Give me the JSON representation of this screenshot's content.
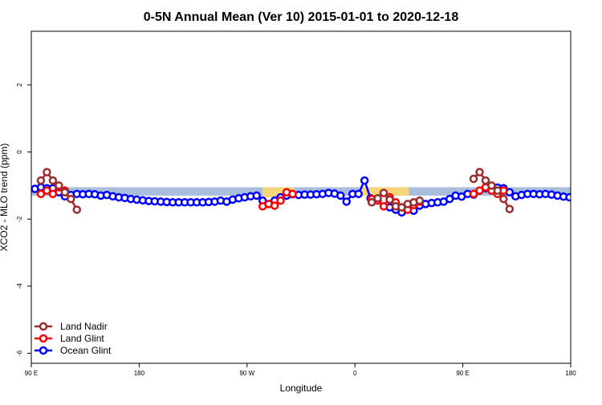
{
  "chart_data": {
    "type": "line",
    "title": "0-5N Annual Mean (Ver 10)   2015-01-01 to 2020-12-18",
    "xlabel": "Longitude",
    "ylabel": "XCO2 - MLO trend (ppm)",
    "xlim": [
      0,
      450
    ],
    "ylim": [
      -6.3,
      3.6
    ],
    "x_ticks": [
      {
        "value": 0,
        "label": "90 E"
      },
      {
        "value": 90,
        "label": "180"
      },
      {
        "value": 180,
        "label": "90 W"
      },
      {
        "value": 270,
        "label": "0"
      },
      {
        "value": 360,
        "label": "90 E"
      },
      {
        "value": 450,
        "label": "180"
      }
    ],
    "y_ticks": [
      {
        "value": -6,
        "label": "-6"
      },
      {
        "value": -4,
        "label": "-4"
      },
      {
        "value": -2,
        "label": "-2"
      },
      {
        "value": 0,
        "label": "0"
      },
      {
        "value": 2,
        "label": "2"
      }
    ],
    "legend": {
      "position": "bottom-left",
      "items": [
        {
          "name": "Land Nadir",
          "color": "#9b2d30"
        },
        {
          "name": "Land Glint",
          "color": "#ff0000"
        },
        {
          "name": "Ocean Glint",
          "color": "#0000ff"
        }
      ]
    },
    "bands": [
      {
        "kind": "ocean",
        "color": "#a9bedc",
        "x0": 0,
        "x1": 450,
        "y0": -1.3,
        "y1": -1.05
      },
      {
        "kind": "land",
        "color": "#f7d57a",
        "x0": 193,
        "x1": 219,
        "y0": -1.35,
        "y1": -1.05
      },
      {
        "kind": "land",
        "color": "#f7d57a",
        "x0": 275,
        "x1": 315,
        "y0": -1.3,
        "y1": -1.05
      }
    ],
    "series": [
      {
        "name": "Ocean Glint",
        "color": "#0000ff",
        "segments": [
          [
            [
              3,
              -1.1
            ],
            [
              8,
              -1.05
            ],
            [
              13,
              -1.08
            ],
            [
              18,
              -1.08
            ],
            [
              23,
              -1.2
            ],
            [
              28,
              -1.32
            ],
            [
              33,
              -1.28
            ],
            [
              38,
              -1.25
            ],
            [
              43,
              -1.26
            ],
            [
              48,
              -1.25
            ],
            [
              53,
              -1.26
            ],
            [
              58,
              -1.3
            ],
            [
              63,
              -1.28
            ],
            [
              68,
              -1.32
            ],
            [
              73,
              -1.35
            ],
            [
              78,
              -1.37
            ],
            [
              83,
              -1.4
            ],
            [
              88,
              -1.42
            ],
            [
              93,
              -1.44
            ],
            [
              98,
              -1.46
            ],
            [
              103,
              -1.47
            ],
            [
              108,
              -1.48
            ],
            [
              113,
              -1.49
            ],
            [
              118,
              -1.5
            ],
            [
              123,
              -1.5
            ],
            [
              128,
              -1.5
            ],
            [
              133,
              -1.5
            ],
            [
              138,
              -1.5
            ],
            [
              143,
              -1.5
            ],
            [
              148,
              -1.49
            ],
            [
              153,
              -1.48
            ],
            [
              158,
              -1.45
            ],
            [
              163,
              -1.48
            ],
            [
              168,
              -1.42
            ],
            [
              173,
              -1.38
            ],
            [
              178,
              -1.35
            ],
            [
              183,
              -1.32
            ],
            [
              188,
              -1.3
            ],
            [
              193,
              -1.45
            ],
            [
              198,
              -1.55
            ],
            [
              203,
              -1.45
            ],
            [
              208,
              -1.35
            ],
            [
              213,
              -1.3
            ],
            [
              218,
              -1.26
            ],
            [
              223,
              -1.28
            ],
            [
              228,
              -1.27
            ],
            [
              233,
              -1.27
            ],
            [
              238,
              -1.26
            ],
            [
              243,
              -1.25
            ],
            [
              248,
              -1.22
            ],
            [
              253,
              -1.24
            ],
            [
              258,
              -1.3
            ],
            [
              263,
              -1.48
            ],
            [
              268,
              -1.25
            ],
            [
              273,
              -1.25
            ],
            [
              278,
              -0.85
            ],
            [
              283,
              -1.38
            ]
          ],
          [
            [
              299,
              -1.65
            ],
            [
              304,
              -1.72
            ],
            [
              309,
              -1.8
            ],
            [
              314,
              -1.62
            ],
            [
              319,
              -1.75
            ],
            [
              324,
              -1.6
            ],
            [
              329,
              -1.55
            ],
            [
              334,
              -1.52
            ],
            [
              339,
              -1.5
            ],
            [
              344,
              -1.48
            ],
            [
              349,
              -1.4
            ],
            [
              354,
              -1.3
            ],
            [
              359,
              -1.33
            ],
            [
              364,
              -1.25
            ],
            [
              369,
              -1.27
            ],
            [
              374,
              -1.15
            ],
            [
              379,
              -1.08
            ],
            [
              384,
              -1.06
            ],
            [
              389,
              -1.06
            ],
            [
              394,
              -1.08
            ],
            [
              399,
              -1.2
            ],
            [
              404,
              -1.32
            ],
            [
              409,
              -1.28
            ],
            [
              414,
              -1.25
            ],
            [
              419,
              -1.25
            ],
            [
              424,
              -1.26
            ],
            [
              429,
              -1.25
            ],
            [
              434,
              -1.27
            ],
            [
              439,
              -1.3
            ],
            [
              444,
              -1.33
            ],
            [
              449,
              -1.35
            ],
            [
              454,
              -1.35
            ]
          ]
        ]
      },
      {
        "name": "Land Glint",
        "color": "#ff0000",
        "segments": [
          [
            [
              8,
              -1.25
            ],
            [
              13,
              -1.15
            ],
            [
              18,
              -1.25
            ],
            [
              23,
              -1.05
            ],
            [
              28,
              -1.15
            ]
          ],
          [
            [
              193,
              -1.62
            ],
            [
              198,
              -1.55
            ],
            [
              203,
              -1.6
            ],
            [
              208,
              -1.45
            ],
            [
              213,
              -1.2
            ],
            [
              218,
              -1.25
            ]
          ],
          [
            [
              284,
              -1.4
            ],
            [
              289,
              -1.45
            ],
            [
              294,
              -1.62
            ],
            [
              299,
              -1.35
            ],
            [
              304,
              -1.5
            ],
            [
              309,
              -1.65
            ],
            [
              314,
              -1.72
            ],
            [
              319,
              -1.58
            ],
            [
              324,
              -1.48
            ]
          ],
          [
            [
              369,
              -1.25
            ],
            [
              374,
              -1.15
            ],
            [
              379,
              -1.05
            ],
            [
              384,
              -1.15
            ],
            [
              389,
              -1.25
            ],
            [
              394,
              -1.15
            ]
          ]
        ]
      },
      {
        "name": "Land Nadir",
        "color": "#9b2d30",
        "segments": [
          [
            [
              8,
              -0.85
            ],
            [
              13,
              -0.6
            ],
            [
              18,
              -0.85
            ],
            [
              23,
              -1.0
            ],
            [
              28,
              -1.2
            ],
            [
              33,
              -1.4
            ],
            [
              38,
              -1.72
            ]
          ],
          [
            [
              284,
              -1.5
            ],
            [
              289,
              -1.38
            ],
            [
              294,
              -1.22
            ],
            [
              299,
              -1.42
            ],
            [
              304,
              -1.62
            ],
            [
              309,
              -1.65
            ],
            [
              314,
              -1.55
            ],
            [
              319,
              -1.5
            ],
            [
              324,
              -1.45
            ]
          ],
          [
            [
              369,
              -0.8
            ],
            [
              374,
              -0.6
            ],
            [
              379,
              -0.85
            ],
            [
              384,
              -1.0
            ],
            [
              389,
              -1.15
            ],
            [
              394,
              -1.4
            ],
            [
              399,
              -1.7
            ]
          ]
        ]
      }
    ]
  }
}
